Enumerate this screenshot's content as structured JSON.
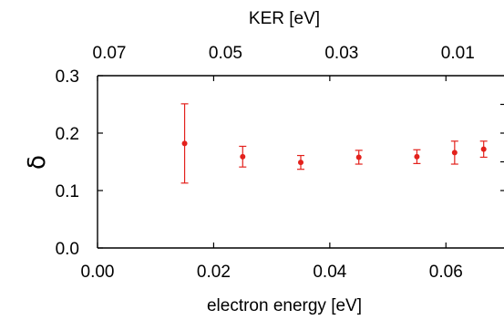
{
  "chart_data": {
    "type": "scatter",
    "xlabel": "electron energy [eV]",
    "ylabel": "δ",
    "top_xlabel": "KER [eV]",
    "xlim": [
      0.0,
      0.07
    ],
    "ylim": [
      0.0,
      0.3
    ],
    "x_ticks": [
      0.0,
      0.02,
      0.04,
      0.06
    ],
    "x_tick_labels": [
      "0.00",
      "0.02",
      "0.04",
      "0.06"
    ],
    "y_ticks": [
      0.0,
      0.1,
      0.2,
      0.3
    ],
    "y_tick_labels": [
      "0.0",
      "0.1",
      "0.2",
      "0.3"
    ],
    "top_x_tick_positions_in_bottom_units": [
      0.0,
      0.02,
      0.04,
      0.06
    ],
    "top_x_tick_labels": [
      "0.07",
      "0.05",
      "0.03",
      "0.01"
    ],
    "grid": false,
    "marker_color": "#e3211c",
    "series": [
      {
        "x": [
          0.015,
          0.025,
          0.035,
          0.045,
          0.055,
          0.0615,
          0.0665
        ],
        "y": [
          0.182,
          0.159,
          0.149,
          0.158,
          0.159,
          0.166,
          0.172
        ],
        "err_low": [
          0.069,
          0.018,
          0.012,
          0.012,
          0.012,
          0.02,
          0.014
        ],
        "err_high": [
          0.069,
          0.018,
          0.012,
          0.012,
          0.012,
          0.02,
          0.014
        ]
      }
    ]
  }
}
